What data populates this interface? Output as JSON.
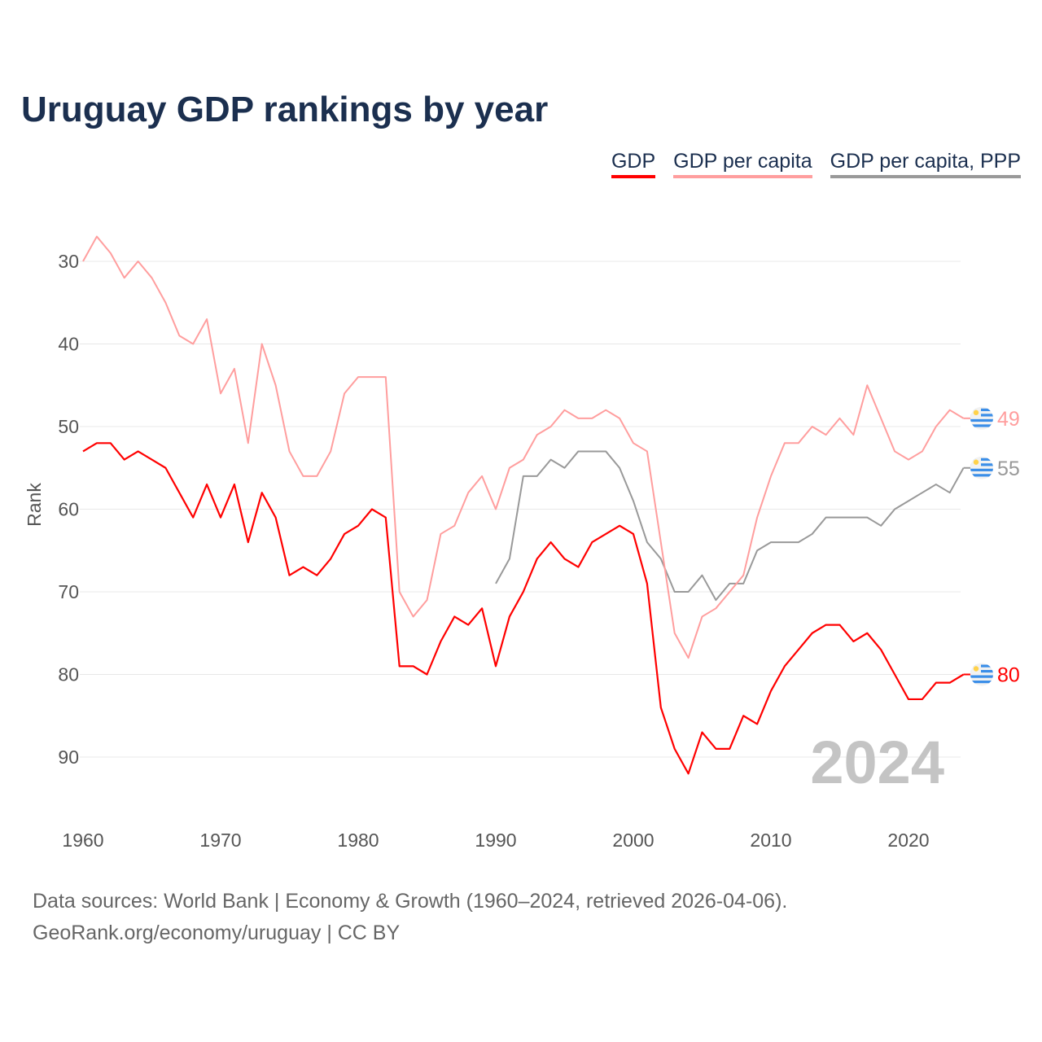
{
  "chart_data": {
    "type": "line",
    "title": "Uruguay GDP rankings by year",
    "xlabel": "",
    "ylabel": "Rank",
    "xlim": [
      1960,
      2024
    ],
    "ylim": [
      97,
      25
    ],
    "y_inverted": true,
    "xticks": [
      1960,
      1970,
      1980,
      1990,
      2000,
      2010,
      2020
    ],
    "yticks": [
      30,
      40,
      50,
      60,
      70,
      80,
      90
    ],
    "grid": true,
    "legend_position": "top-right",
    "watermark_year": "2024",
    "series": [
      {
        "name": "GDP",
        "color": "#ff0000",
        "start_year": 1960,
        "end_label": "80",
        "values": [
          53,
          52,
          52,
          54,
          53,
          54,
          55,
          58,
          61,
          57,
          61,
          57,
          64,
          58,
          61,
          68,
          67,
          68,
          66,
          63,
          62,
          60,
          61,
          79,
          79,
          80,
          76,
          73,
          74,
          72,
          79,
          73,
          70,
          66,
          64,
          66,
          67,
          64,
          63,
          62,
          63,
          69,
          84,
          89,
          92,
          87,
          89,
          89,
          85,
          86,
          82,
          79,
          77,
          75,
          74,
          74,
          76,
          75,
          77,
          80,
          83,
          83,
          81,
          81,
          80
        ]
      },
      {
        "name": "GDP per capita",
        "color": "#ff9e9e",
        "start_year": 1960,
        "end_label": "49",
        "values": [
          30,
          27,
          29,
          32,
          30,
          32,
          35,
          39,
          40,
          37,
          46,
          43,
          52,
          40,
          45,
          53,
          56,
          56,
          53,
          46,
          44,
          44,
          44,
          70,
          73,
          71,
          63,
          62,
          58,
          56,
          60,
          55,
          54,
          51,
          50,
          48,
          49,
          49,
          48,
          49,
          52,
          53,
          64,
          75,
          78,
          73,
          72,
          70,
          68,
          61,
          56,
          52,
          52,
          50,
          51,
          49,
          51,
          45,
          49,
          53,
          54,
          53,
          50,
          48,
          49
        ]
      },
      {
        "name": "GDP per capita, PPP",
        "color": "#999999",
        "start_year": 1990,
        "end_label": "55",
        "values": [
          69,
          66,
          56,
          56,
          54,
          55,
          53,
          53,
          53,
          55,
          59,
          64,
          66,
          70,
          70,
          68,
          71,
          69,
          69,
          65,
          64,
          64,
          64,
          63,
          61,
          61,
          61,
          61,
          62,
          60,
          59,
          58,
          57,
          58,
          55
        ]
      }
    ]
  },
  "source": {
    "line1": "Data sources: World Bank | Economy & Growth (1960–2024, retrieved 2026-04-06).",
    "line2": "GeoRank.org/economy/uruguay | CC BY"
  },
  "flag_icon": "uruguay-flag-icon"
}
